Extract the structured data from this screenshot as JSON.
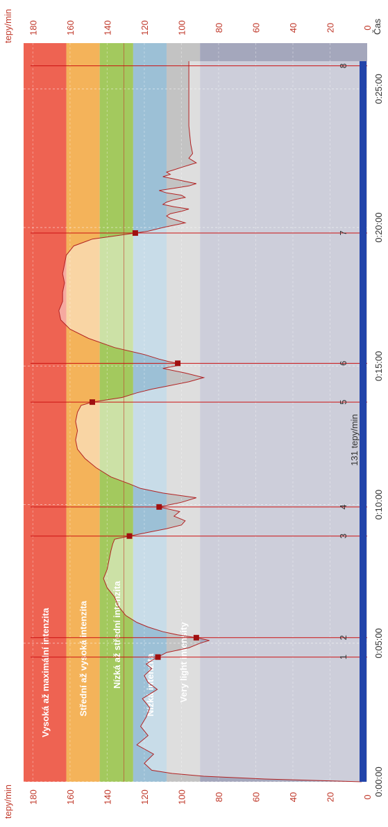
{
  "chart_data": {
    "type": "line",
    "hr_axis_label": "tepy/min",
    "time_axis_label": "Čas",
    "hr_ticks": [
      0,
      20,
      40,
      60,
      80,
      100,
      120,
      140,
      160,
      180
    ],
    "hr_range": [
      0,
      185
    ],
    "time_range_s": [
      0,
      1560
    ],
    "time_ticks": [
      {
        "s": 0,
        "label": "0:00:00"
      },
      {
        "s": 300,
        "label": "0:05:00"
      },
      {
        "s": 600,
        "label": "0:10:00"
      },
      {
        "s": 900,
        "label": "0:15:00"
      },
      {
        "s": 1200,
        "label": "0:20:00"
      },
      {
        "s": 1500,
        "label": "0:25:00"
      }
    ],
    "zones": [
      {
        "name": "Vysoká až maximální intenzita",
        "min": 162,
        "max": 185,
        "color": "#ee6352"
      },
      {
        "name": "Střední až vysoká intenzita",
        "min": 144,
        "max": 162,
        "color": "#f4b35a"
      },
      {
        "name": "Nízká až střední intenzita",
        "min": 126,
        "max": 144,
        "color": "#a3c95e"
      },
      {
        "name": "Nízká intenzita",
        "min": 108,
        "max": 126,
        "color": "#9cc0d6"
      },
      {
        "name": "Very light intensity",
        "min": 90,
        "max": 108,
        "color": "#c3c3c3"
      },
      {
        "name": "",
        "min": 0,
        "max": 90,
        "color": "#a4a7bc"
      }
    ],
    "average_line": {
      "value": 131,
      "label": "131 tepy/min"
    },
    "laps": [
      {
        "label": "1",
        "s": 270
      },
      {
        "label": "2",
        "s": 312
      },
      {
        "label": "3",
        "s": 532
      },
      {
        "label": "4",
        "s": 595
      },
      {
        "label": "5",
        "s": 822
      },
      {
        "label": "6",
        "s": 906
      },
      {
        "label": "7",
        "s": 1188
      },
      {
        "label": "8",
        "s": 1550
      }
    ],
    "series": [
      {
        "x": [
          0,
          6,
          12,
          18,
          25,
          40,
          60,
          80,
          100,
          120,
          140,
          160,
          180,
          200,
          215,
          230,
          245,
          255,
          265,
          280,
          290,
          300,
          306,
          312,
          318,
          325,
          335,
          345,
          360,
          380,
          400,
          420,
          440,
          460,
          480,
          500,
          515,
          525,
          532,
          540,
          548,
          556,
          565,
          575,
          585,
          595,
          605,
          615,
          625,
          635,
          645,
          660,
          680,
          700,
          720,
          740,
          760,
          780,
          800,
          815,
          822,
          832,
          842,
          850,
          858,
          866,
          875,
          885,
          895,
          902,
          906,
          910,
          915,
          925,
          940,
          960,
          980,
          1000,
          1020,
          1040,
          1060,
          1080,
          1100,
          1120,
          1140,
          1160,
          1175,
          1185,
          1192,
          1200,
          1205,
          1210,
          1215,
          1220,
          1225,
          1230,
          1235,
          1240,
          1245,
          1250,
          1255,
          1260,
          1265,
          1270,
          1275,
          1280,
          1285,
          1290,
          1295,
          1300,
          1305,
          1310,
          1315,
          1320,
          1325,
          1330,
          1335,
          1340,
          1345,
          1350,
          1360,
          1380,
          1420,
          1460,
          1500,
          1540,
          1560
        ],
        "y": [
          3,
          55,
          88,
          105,
          116,
          120,
          115,
          124,
          118,
          122,
          119,
          117,
          121,
          113,
          118,
          120,
          116,
          119,
          115,
          108,
          96,
          90,
          85,
          92,
          102,
          110,
          118,
          124,
          130,
          134,
          136,
          140,
          142,
          140,
          139,
          138,
          137,
          136,
          128,
          118,
          108,
          100,
          98,
          104,
          101,
          112,
          100,
          92,
          110,
          122,
          128,
          138,
          146,
          152,
          156,
          157,
          156,
          157,
          156,
          154,
          148,
          132,
          124,
          116,
          106,
          96,
          88,
          98,
          110,
          101,
          102,
          107,
          112,
          120,
          136,
          150,
          160,
          165,
          166,
          164,
          164,
          163,
          164,
          163,
          162,
          158,
          148,
          130,
          118,
          110,
          104,
          98,
          102,
          106,
          108,
          106,
          100,
          96,
          104,
          110,
          108,
          104,
          98,
          100,
          108,
          112,
          104,
          96,
          92,
          98,
          104,
          110,
          106,
          108,
          104,
          100,
          96,
          92,
          94,
          96,
          94,
          95,
          96,
          96,
          96,
          96,
          96
        ]
      }
    ]
  }
}
